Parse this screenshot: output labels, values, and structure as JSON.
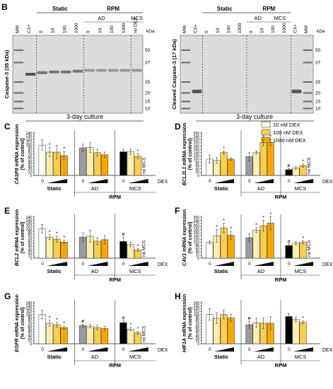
{
  "panel_B": {
    "letter": "B",
    "left_blot": {
      "ylabel": "Caspase-3 (35 kDa)",
      "lanes": [
        "MW",
        "CX+",
        "0",
        "10",
        "100",
        "1000",
        "0",
        "10",
        "100",
        "1000",
        "no DEX"
      ],
      "group_static": "Static",
      "group_rpm": "RPM",
      "group_ad": "AD",
      "group_mcs": "MCS",
      "kda_label": "kDa",
      "kda_ticks": [
        "50",
        "37",
        "25",
        "20",
        "15",
        "10"
      ]
    },
    "right_blot": {
      "ylabel": "Cleaved Caspase-3 (17 kDa)",
      "lanes": [
        "MW",
        "CX+",
        "0",
        "10",
        "100",
        "1000",
        "0",
        "10",
        "100",
        "1000",
        "CX+",
        "MW"
      ],
      "group_static": "Static",
      "group_rpm": "RPM",
      "group_ad": "AD",
      "group_mcs": "MCS",
      "kda_label": "kDa",
      "kda_ticks": [
        "50",
        "37",
        "25",
        "20",
        "15",
        "10"
      ]
    }
  },
  "culture_label": "3-day culture",
  "legend": [
    "10 nM DEX",
    "100 nM DEX",
    "1000 nM DEX"
  ],
  "colors": {
    "white": "#ffffff",
    "light": "#fdeeb0",
    "mid": "#fbcd4f",
    "dark": "#f5a800",
    "ad": "#9a9a9a",
    "mcs": "#000000"
  },
  "chart_data": [
    {
      "type": "bar",
      "letter": "C",
      "ylabel": [
        "CASP8",
        " mRNA expression",
        "(% of control)"
      ],
      "ylim": [
        0,
        140
      ],
      "yticks": [
        "0",
        "10",
        "20",
        "30",
        "40",
        "50",
        "60",
        "70",
        "80",
        "90",
        "100",
        "110",
        "120",
        "130",
        "140"
      ],
      "groups": [
        {
          "name": "Static",
          "values": [
            100,
            77,
            77,
            65
          ],
          "errors": [
            18,
            15,
            22,
            14
          ],
          "marks": [
            "",
            "*",
            "",
            "*"
          ]
        },
        {
          "name": "AD",
          "values": [
            91,
            92,
            75,
            68
          ],
          "errors": [
            12,
            16,
            11,
            9
          ],
          "marks": [
            "",
            "",
            "",
            ""
          ]
        },
        {
          "name": "MCS",
          "values": [
            78,
            78,
            63,
            null
          ],
          "errors": [
            7,
            9,
            8,
            0
          ],
          "marks": [
            "",
            "",
            "*",
            ""
          ]
        }
      ],
      "dose_label": "0",
      "xlabel": "DEX",
      "rpm_label": "RPM",
      "no_mcs": "no MCS"
    },
    {
      "type": "bar",
      "letter": "D",
      "ylabel": [
        "BCL2L1",
        " mRNA expression",
        "(% of control)"
      ],
      "ylim": [
        0,
        260
      ],
      "yticks": [
        "0",
        "20",
        "40",
        "60",
        "80",
        "100",
        "120",
        "140",
        "160",
        "180",
        "200",
        "220",
        "240",
        "260"
      ],
      "groups": [
        {
          "name": "Static",
          "values": [
            100,
            92,
            140,
            100
          ],
          "errors": [
            25,
            18,
            10,
            7
          ],
          "marks": [
            "",
            "",
            "*",
            ""
          ]
        },
        {
          "name": "AD",
          "values": [
            115,
            140,
            200,
            202
          ],
          "errors": [
            25,
            10,
            18,
            18
          ],
          "marks": [
            "",
            "",
            "*",
            "*"
          ]
        },
        {
          "name": "MCS",
          "values": [
            35,
            45,
            60,
            null
          ],
          "errors": [
            8,
            8,
            10,
            0
          ],
          "marks": [
            "#",
            "",
            "*",
            ""
          ]
        }
      ],
      "dose_label": "0",
      "xlabel": "DEX",
      "rpm_label": "RPM",
      "no_mcs": "no MCS"
    },
    {
      "type": "bar",
      "letter": "E",
      "ylabel": [
        "BCL2",
        " mRNA expression",
        "(% of control)"
      ],
      "ylim": [
        0,
        140
      ],
      "yticks": [
        "0",
        "10",
        "20",
        "30",
        "40",
        "50",
        "60",
        "70",
        "80",
        "90",
        "100",
        "110",
        "120",
        "130",
        "140"
      ],
      "groups": [
        {
          "name": "Static",
          "values": [
            100,
            72,
            65,
            55
          ],
          "errors": [
            15,
            8,
            10,
            6
          ],
          "marks": [
            "",
            "*",
            "*",
            "*"
          ]
        },
        {
          "name": "AD",
          "values": [
            72,
            75,
            58,
            63
          ],
          "errors": [
            15,
            20,
            12,
            14
          ],
          "marks": [
            "",
            "",
            "",
            ""
          ]
        },
        {
          "name": "MCS",
          "values": [
            57,
            47,
            28,
            null
          ],
          "errors": [
            15,
            8,
            5,
            0
          ],
          "marks": [
            "#",
            "",
            "*",
            ""
          ]
        }
      ],
      "dose_label": "0",
      "xlabel": "DEX",
      "rpm_label": "RPM",
      "no_mcs": "no MCS"
    },
    {
      "type": "bar",
      "letter": "F",
      "ylabel": [
        "CAV1",
        " mRNA expression",
        "(% of control)"
      ],
      "ylim": [
        0,
        260
      ],
      "yticks": [
        "0",
        "20",
        "40",
        "60",
        "80",
        "100",
        "120",
        "140",
        "160",
        "180",
        "200",
        "220",
        "240",
        "260"
      ],
      "groups": [
        {
          "name": "Static",
          "values": [
            100,
            142,
            192,
            145
          ],
          "errors": [
            10,
            40,
            30,
            25
          ],
          "marks": [
            "",
            "*",
            "*",
            "*"
          ]
        },
        {
          "name": "AD",
          "values": [
            130,
            178,
            205,
            222
          ],
          "errors": [
            25,
            15,
            35,
            40
          ],
          "marks": [
            "",
            "*",
            "*",
            "*"
          ]
        },
        {
          "name": "MCS",
          "values": [
            80,
            95,
            100,
            null
          ],
          "errors": [
            8,
            10,
            10,
            0
          ],
          "marks": [
            "#",
            "",
            "*",
            ""
          ]
        }
      ],
      "dose_label": "0",
      "xlabel": "DEX",
      "rpm_label": "RPM",
      "no_mcs": "no MCS"
    },
    {
      "type": "bar",
      "letter": "G",
      "ylabel": [
        "EGFR",
        " mRNA expression",
        "(% of control)"
      ],
      "ylim": [
        0,
        140
      ],
      "yticks": [
        "0",
        "10",
        "20",
        "30",
        "40",
        "50",
        "60",
        "70",
        "80",
        "90",
        "100",
        "110",
        "120",
        "130",
        "140"
      ],
      "groups": [
        {
          "name": "Static",
          "values": [
            100,
            70,
            65,
            55
          ],
          "errors": [
            15,
            10,
            8,
            5
          ],
          "marks": [
            "",
            "*",
            "*",
            "*"
          ]
        },
        {
          "name": "AD",
          "values": [
            62,
            60,
            55,
            52
          ],
          "errors": [
            5,
            6,
            8,
            7
          ],
          "marks": [
            "#",
            "",
            "",
            ""
          ]
        },
        {
          "name": "MCS",
          "values": [
            72,
            50,
            37,
            null
          ],
          "errors": [
            6,
            6,
            5,
            0
          ],
          "marks": [
            "#",
            "*",
            "*",
            ""
          ]
        }
      ],
      "dose_label": "0",
      "xlabel": "DEX",
      "rpm_label": "RPM",
      "no_mcs": "no MCS"
    },
    {
      "type": "bar",
      "letter": "H",
      "ylabel": [
        "HIF1A",
        " mRNA expression",
        "(% of control)"
      ],
      "ylim": [
        0,
        140
      ],
      "yticks": [
        "0",
        "10",
        "20",
        "30",
        "40",
        "50",
        "60",
        "70",
        "80",
        "90",
        "100",
        "110",
        "120",
        "130",
        "140"
      ],
      "groups": [
        {
          "name": "Static",
          "values": [
            100,
            87,
            100,
            88
          ],
          "errors": [
            20,
            18,
            15,
            12
          ],
          "marks": [
            "",
            "",
            "",
            ""
          ]
        },
        {
          "name": "AD",
          "values": [
            65,
            72,
            70,
            70
          ],
          "errors": [
            12,
            15,
            18,
            22
          ],
          "marks": [
            "#",
            "",
            "",
            ""
          ]
        },
        {
          "name": "MCS",
          "values": [
            93,
            83,
            73,
            null
          ],
          "errors": [
            10,
            8,
            5,
            0
          ],
          "marks": [
            "",
            "",
            "*",
            ""
          ]
        }
      ],
      "dose_label": "0",
      "xlabel": "DEX",
      "rpm_label": "RPM",
      "no_mcs": ""
    }
  ]
}
